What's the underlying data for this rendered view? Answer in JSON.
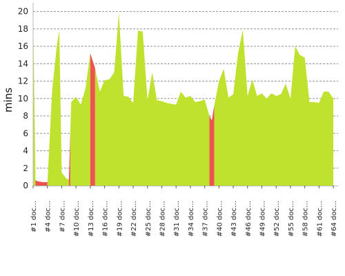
{
  "chart_data": {
    "type": "area",
    "title": "",
    "xlabel": "",
    "ylabel": "mins",
    "ylim": [
      0,
      21
    ],
    "yticks": [
      0,
      2,
      4,
      6,
      8,
      10,
      12,
      14,
      16,
      18,
      20
    ],
    "grid": true,
    "legend": "none",
    "x_tick_labels": [
      "#1 dock",
      "#4 dock",
      "#7 dock",
      "#10 dock",
      "#13 dock",
      "#16 dock",
      "#19 dock",
      "#22 dock",
      "#25 dock",
      "#28 dock",
      "#31 dock",
      "#34 dock",
      "#37 dock",
      "#40 dock",
      "#43 dock",
      "#46 dock",
      "#49 dock",
      "#52 dock",
      "#55 dock",
      "#58 dock",
      "#61 dock",
      "#64 dock"
    ],
    "x_tick_indices": [
      1,
      4,
      7,
      10,
      13,
      16,
      19,
      22,
      25,
      28,
      31,
      34,
      37,
      40,
      43,
      46,
      49,
      52,
      55,
      58,
      61,
      64
    ],
    "x_tick_display": "truncated",
    "x": [
      1,
      1.5,
      2,
      3,
      4,
      5,
      6,
      6.5,
      7,
      8,
      8.5,
      9,
      10,
      11,
      12,
      13,
      14,
      15,
      16,
      17,
      18,
      19,
      20,
      21,
      22,
      23,
      24,
      25,
      26,
      27,
      28,
      29,
      30,
      31,
      32,
      33,
      34,
      35,
      36,
      37,
      38,
      38.5,
      39,
      40,
      41,
      42,
      43,
      44,
      45,
      46,
      47,
      48,
      49,
      50,
      51,
      52,
      53,
      54,
      55,
      56,
      57,
      58,
      59,
      60,
      61,
      62,
      63,
      64
    ],
    "values": [
      20,
      0.6,
      0.5,
      0.4,
      0.4,
      11,
      16.2,
      17.8,
      1.5,
      0.8,
      0.7,
      9.6,
      10.2,
      9.3,
      11.2,
      15.2,
      13.5,
      10.8,
      12.1,
      12.2,
      13,
      19.8,
      10.3,
      10.2,
      9.5,
      17.8,
      17.7,
      9.8,
      13,
      9.8,
      9.7,
      9.5,
      9.4,
      9.3,
      10.8,
      10.1,
      10.3,
      9.6,
      9.7,
      9.9,
      8,
      7.5,
      9.2,
      12,
      13.4,
      10.1,
      10.5,
      15.2,
      17.9,
      10.3,
      12.2,
      10.3,
      10.6,
      10,
      10.6,
      10.3,
      10.5,
      11.7,
      10,
      16,
      15,
      14.7,
      9.6,
      9.6,
      9.5,
      10.8,
      10.8,
      10
    ],
    "series": [
      {
        "name": "",
        "role": "normal",
        "color": "#bfe22f"
      },
      {
        "name": "",
        "role": "flagged",
        "color": "#ef5350"
      }
    ],
    "flagged_ranges": [
      [
        1.5,
        4
      ],
      [
        8.5,
        8.8
      ],
      [
        13,
        14
      ],
      [
        38,
        39
      ]
    ]
  }
}
